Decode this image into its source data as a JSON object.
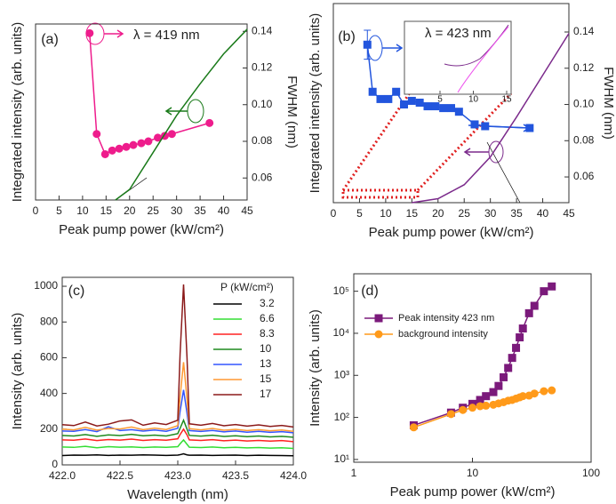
{
  "chart_data": [
    {
      "type": "line",
      "panel_label": "(a)",
      "annotation": "λ = 419 nm",
      "xlabel": "Peak pump power (kW/cm²)",
      "ylabel": "Integrated intensity (arb. units)",
      "y2label": "FWHM (nm)",
      "xlim": [
        0,
        45
      ],
      "xticks": [
        0,
        5,
        10,
        15,
        20,
        25,
        30,
        35,
        40,
        45
      ],
      "ylim": [
        0,
        1
      ],
      "y2lim": [
        0.048,
        0.144
      ],
      "y2ticks": [
        0.06,
        0.08,
        {
          "value": 0.1,
          "label": "0.10"
        },
        0.12,
        0.14
      ],
      "series": [
        {
          "axis": "y2",
          "color": "#ee1c8c",
          "marker": "circle",
          "x": [
            11.5,
            13,
            14.8,
            16.3,
            17.8,
            19.3,
            20.8,
            22.5,
            24,
            26,
            27.5,
            29,
            37
          ],
          "values": [
            0.139,
            0.084,
            0.073,
            0.075,
            0.076,
            0.077,
            0.078,
            0.079,
            0.08,
            0.082,
            0.083,
            0.084,
            0.09
          ]
        },
        {
          "axis": "y",
          "color": "#1a7a1a",
          "x": [
            17,
            20,
            25,
            30,
            35,
            40,
            45
          ],
          "values": [
            0,
            0.06,
            0.27,
            0.48,
            0.66,
            0.83,
            0.97
          ]
        }
      ]
    },
    {
      "type": "line",
      "panel_label": "(b)",
      "inset": {
        "label": "λ = 423 nm",
        "xticks": [
          5,
          10,
          15
        ]
      },
      "xlabel": "Peak pump power (kW/cm²)",
      "ylabel": "Integrated intensity (arb. units)",
      "y2label": "FWHM (nm)",
      "xlim": [
        0,
        45
      ],
      "xticks": [
        0,
        5,
        10,
        15,
        20,
        25,
        30,
        35,
        40,
        45
      ],
      "ylim": [
        0,
        1
      ],
      "y2lim": [
        0.0458,
        0.1557
      ],
      "y2ticks": [
        0.06,
        0.08,
        {
          "value": 0.1,
          "label": "0.10"
        },
        0.12,
        0.14
      ],
      "series": [
        {
          "axis": "y2",
          "color": "#2255dd",
          "marker": "square",
          "x": [
            6.5,
            7.5,
            9,
            10.5,
            12,
            13.5,
            15,
            16.5,
            18,
            19.5,
            21,
            22.5,
            24,
            27,
            29,
            37.5
          ],
          "values": [
            0.133,
            0.107,
            0.103,
            0.103,
            0.107,
            0.1,
            0.102,
            0.101,
            0.099,
            0.099,
            0.098,
            0.098,
            0.096,
            0.089,
            0.088,
            0.087
          ],
          "errors": [
            0.008,
            null,
            null,
            null,
            null,
            null,
            null,
            null,
            null,
            null,
            null,
            null,
            null,
            null,
            null,
            null
          ]
        },
        {
          "axis": "y",
          "color": "#7b2a8b",
          "x": [
            15,
            20,
            25,
            30,
            35,
            40,
            45
          ],
          "values": [
            0,
            0.02,
            0.09,
            0.23,
            0.43,
            0.64,
            0.85
          ]
        }
      ]
    },
    {
      "type": "line",
      "panel_label": "(c)",
      "legend_title": "P (kW/cm²)",
      "xlabel": "Wavelength (nm)",
      "ylabel": "Intensity (arb. units)",
      "xlim": [
        422,
        424
      ],
      "xticks": [
        {
          "value": 422,
          "label": "422.0"
        },
        {
          "value": 422.5,
          "label": "422.5"
        },
        {
          "value": 423,
          "label": "423.0"
        },
        {
          "value": 423.5,
          "label": "423.5"
        },
        {
          "value": 424,
          "label": "424.0"
        }
      ],
      "ylim": [
        0,
        1050
      ],
      "yticks": [
        0,
        200,
        400,
        600,
        800,
        1000
      ],
      "x": [
        422,
        422.1,
        422.2,
        422.3,
        422.4,
        422.5,
        422.6,
        422.7,
        422.8,
        422.9,
        423,
        423.02,
        423.05,
        423.08,
        423.1,
        423.2,
        423.3,
        423.4,
        423.5,
        423.6,
        423.7,
        423.8,
        423.9,
        424
      ],
      "series": [
        {
          "name": "3.2",
          "color": "#000000",
          "values": [
            52,
            55,
            54,
            56,
            53,
            55,
            54,
            56,
            55,
            53,
            55,
            57,
            62,
            56,
            54,
            55,
            53,
            54,
            55,
            52,
            54,
            53,
            52,
            51
          ]
        },
        {
          "name": "6.6",
          "color": "#33dd33",
          "values": [
            100,
            98,
            104,
            96,
            102,
            99,
            101,
            97,
            100,
            98,
            102,
            118,
            140,
            115,
            99,
            97,
            100,
            96,
            98,
            95,
            97,
            94,
            96,
            92
          ]
        },
        {
          "name": "8.3",
          "color": "#ff2222",
          "values": [
            140,
            138,
            145,
            136,
            142,
            139,
            144,
            137,
            141,
            138,
            146,
            170,
            200,
            168,
            140,
            137,
            141,
            135,
            139,
            134,
            137,
            133,
            136,
            130
          ]
        },
        {
          "name": "10",
          "color": "#1f8a1f",
          "values": [
            165,
            162,
            170,
            160,
            168,
            164,
            171,
            163,
            167,
            162,
            175,
            205,
            250,
            200,
            165,
            161,
            166,
            159,
            163,
            158,
            162,
            157,
            160,
            155
          ]
        },
        {
          "name": "13",
          "color": "#3355ff",
          "values": [
            190,
            188,
            198,
            186,
            214,
            192,
            197,
            189,
            195,
            188,
            205,
            300,
            420,
            290,
            192,
            187,
            193,
            185,
            190,
            183,
            188,
            182,
            186,
            180
          ]
        },
        {
          "name": "15",
          "color": "#ff9933",
          "values": [
            200,
            196,
            210,
            195,
            204,
            201,
            212,
            197,
            206,
            198,
            220,
            380,
            575,
            370,
            203,
            196,
            204,
            194,
            199,
            192,
            197,
            191,
            195,
            188
          ]
        },
        {
          "name": "17",
          "color": "#8b1a1a",
          "values": [
            225,
            220,
            240,
            218,
            228,
            246,
            252,
            222,
            235,
            226,
            250,
            620,
            1010,
            600,
            230,
            222,
            232,
            219,
            226,
            217,
            224,
            215,
            221,
            212
          ]
        }
      ]
    },
    {
      "type": "line",
      "panel_label": "(d)",
      "xlog": true,
      "ylog": true,
      "xlabel": "Peak pump power (kW/cm²)",
      "ylabel": "Intensity (arb. units)",
      "xlim": [
        1,
        100
      ],
      "xticks": [
        1,
        10,
        100
      ],
      "ylim": [
        8.6,
        260000
      ],
      "yticks": [
        {
          "value": 10,
          "label": "10¹"
        },
        {
          "value": 100,
          "label": "10²"
        },
        {
          "value": 1000,
          "label": "10³"
        },
        {
          "value": 10000,
          "label": "10⁴"
        },
        {
          "value": 100000,
          "label": "10⁵"
        }
      ],
      "series": [
        {
          "name": "Peak intensity 423 nm",
          "color": "#7b1a7b",
          "marker": "square",
          "x": [
            3.2,
            6.6,
            8.3,
            10,
            11.6,
            13,
            15,
            16.6,
            18.3,
            20,
            21.6,
            23.3,
            25,
            26.6,
            30,
            33.3,
            40,
            46.6
          ],
          "values": [
            65,
            130,
            170,
            210,
            260,
            320,
            400,
            560,
            900,
            1500,
            2600,
            4500,
            8000,
            13000,
            30000,
            45000,
            100000,
            130000
          ]
        },
        {
          "name": "background intensity",
          "color": "#ff9a1a",
          "marker": "circle",
          "x": [
            3.2,
            6.6,
            8.3,
            10,
            11.6,
            13,
            15,
            16.6,
            18.3,
            20,
            21.6,
            23.3,
            25,
            26.6,
            30,
            33.3,
            40,
            46.6
          ],
          "values": [
            58,
            120,
            150,
            170,
            185,
            190,
            200,
            215,
            230,
            250,
            260,
            280,
            300,
            320,
            330,
            370,
            420,
            440
          ]
        }
      ]
    }
  ]
}
